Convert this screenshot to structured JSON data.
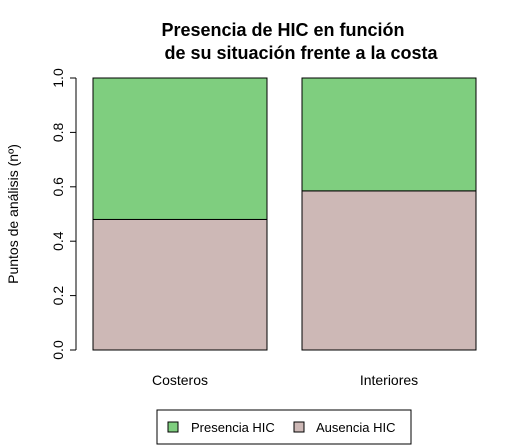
{
  "chart_data": {
    "type": "bar",
    "stacked": true,
    "title_line1": "Presencia de HIC en función",
    "title_line2": "de su situación frente a la costa",
    "ylabel": "Puntos de análisis (nº)",
    "ylim": [
      0,
      1
    ],
    "yticks": [
      "0.0",
      "0.2",
      "0.4",
      "0.6",
      "0.8",
      "1.0"
    ],
    "categories": [
      "Costeros",
      "Interiores"
    ],
    "series": [
      {
        "name": "Ausencia HIC",
        "color": "#CDB8B6",
        "values": [
          0.48,
          0.585
        ]
      },
      {
        "name": "Presencia HIC",
        "color": "#7FCE7F",
        "values": [
          0.52,
          0.415
        ]
      }
    ],
    "legend_items": [
      {
        "label": "Presencia HIC",
        "color": "#7FCE7F"
      },
      {
        "label": "Ausencia HIC",
        "color": "#CDB8B6"
      }
    ],
    "legend_position": "bottom",
    "grid": false
  }
}
